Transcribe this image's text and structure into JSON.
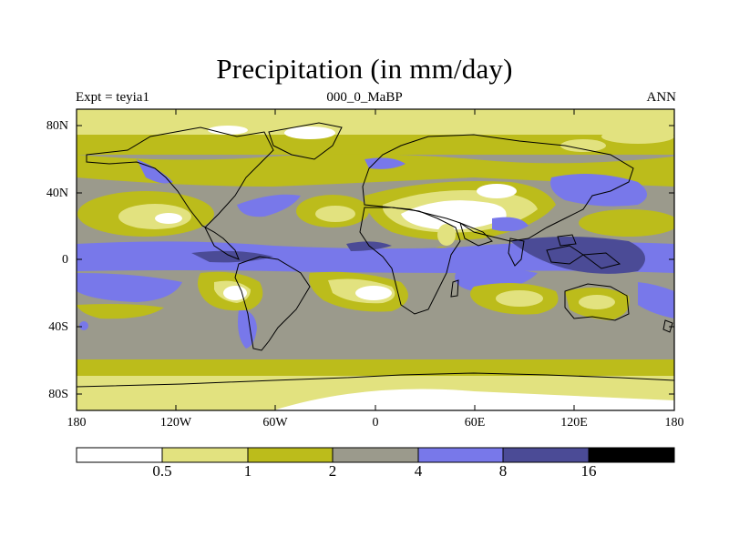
{
  "title": "Precipitation (in mm/day)",
  "subtitle_left": "Expt = teyia1",
  "subtitle_center": "000_0_MaBP",
  "subtitle_right": "ANN",
  "lat_labels": [
    "80N",
    "40N",
    "0",
    "40S",
    "80S"
  ],
  "lon_labels": [
    "180",
    "120W",
    "60W",
    "0",
    "60E",
    "120E",
    "180"
  ],
  "colorbar": {
    "levels": [
      "0.5",
      "1",
      "2",
      "4",
      "8",
      "16"
    ],
    "colors": [
      "#ffffff",
      "#e2e27f",
      "#bcbc1b",
      "#9b9a8c",
      "#7878ea",
      "#4b4b96",
      "#000000"
    ]
  },
  "map": {
    "background_color": "#9b9a8c",
    "coastline_color": "#000000"
  }
}
